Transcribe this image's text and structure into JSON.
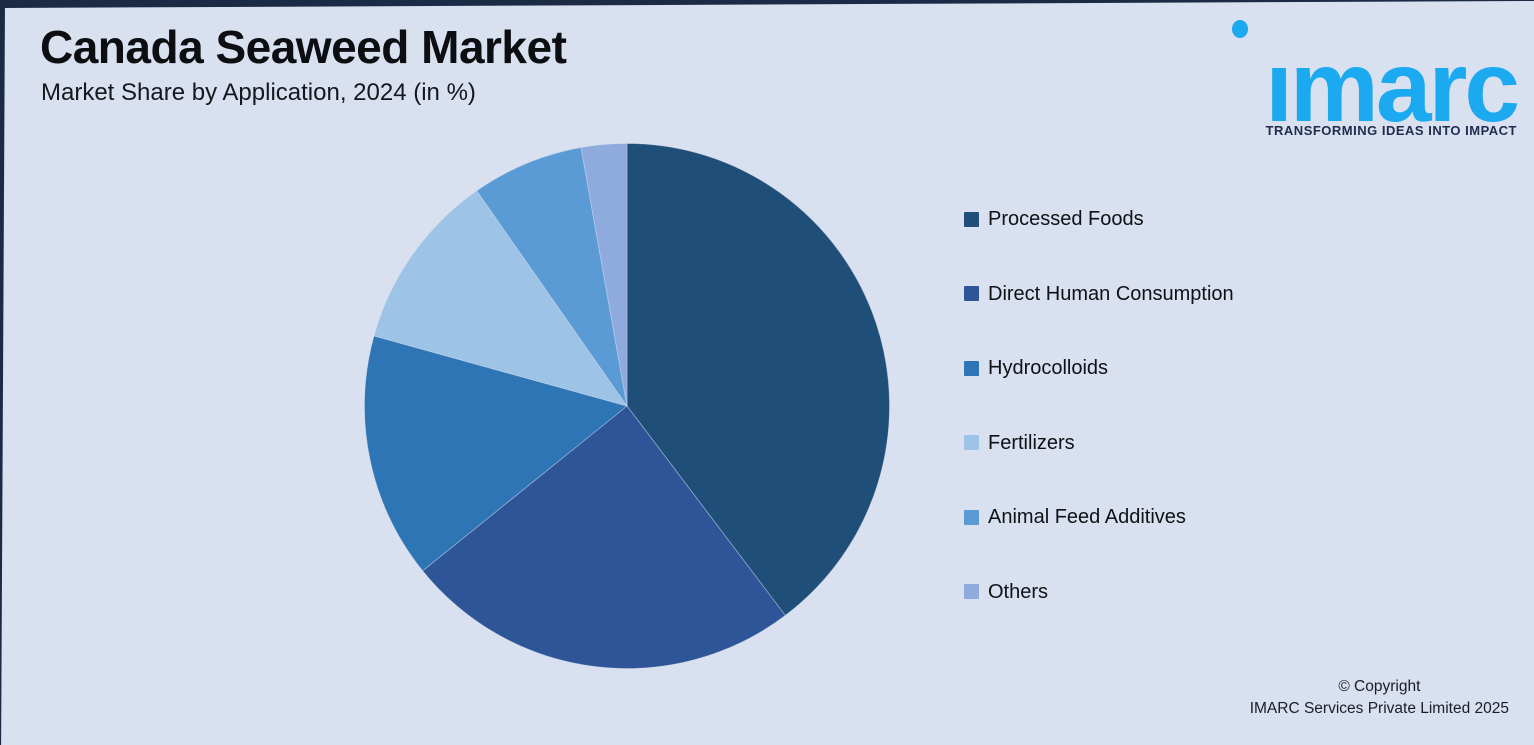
{
  "page": {
    "background_color": "#D9E0EF",
    "edge_color": "#1C2B45"
  },
  "header": {
    "title": "Canada Seaweed Market",
    "subtitle": "Market Share by Application, 2024 (in %)"
  },
  "logo": {
    "wordmark": "imarc",
    "tagline": "TRANSFORMING IDEAS INTO IMPACT",
    "brand_color": "#1BA9F0",
    "tagline_color": "#1E2C4E"
  },
  "chart_data": {
    "type": "pie",
    "title": "Canada Seaweed Market",
    "subtitle": "Market Share by Application, 2024 (in %)",
    "unit": "%",
    "categories": [
      "Processed Foods",
      "Direct Human Consumption",
      "Hydrocolloids",
      "Fertilizers",
      "Animal Feed Additives",
      "Others"
    ],
    "values": [
      39.7,
      24.5,
      15.1,
      11.0,
      6.9,
      2.8
    ],
    "colors": [
      "#1F4E79",
      "#2E5597",
      "#2E75B6",
      "#9DC3E6",
      "#5B9BD5",
      "#8FAADC"
    ],
    "start_angle_deg": 0,
    "direction": "clockwise",
    "legend_position": "right",
    "data_labels": false
  },
  "footer": {
    "copyright_line1": "© Copyright",
    "copyright_line2": "IMARC Services Private Limited 2025"
  }
}
